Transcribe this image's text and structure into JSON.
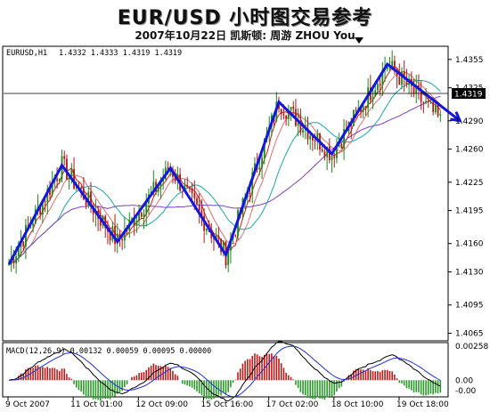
{
  "header": {
    "title": "EUR/USD 小时图交易参考",
    "subtitle": "2007年10月22日  凯斯顿: 周游 ZHOU You"
  },
  "chart_data": {
    "type": "candlestick",
    "symbol_label": "EURUSD,H1",
    "ohlc_label": "1.4332 1.4333 1.4319 1.4319",
    "price_axis": {
      "ticks": [
        "1.4355",
        "1.4325",
        "1.4290",
        "1.4260",
        "1.4225",
        "1.4195",
        "1.4160",
        "1.4130",
        "1.4095",
        "1.4065"
      ],
      "range": [
        1.4058,
        1.4368
      ]
    },
    "current_price": "1.4319",
    "time_axis": {
      "ticks": [
        "9 Oct 2007",
        "11 Oct 01:00",
        "12 Oct 09:00",
        "15 Oct 16:00",
        "17 Oct 02:00",
        "18 Oct 10:00",
        "19 Oct 18:00"
      ]
    },
    "zigzag_pattern": [
      1.4138,
      1.4243,
      1.4162,
      1.424,
      1.4148,
      1.431,
      1.4255,
      1.435,
      1.429
    ],
    "macd": {
      "label": "MACD(12,26,9) 0.00132 0.00059 0.00095 0.00000",
      "axis_ticks": [
        "0.00258",
        "0.00",
        "-0.00"
      ],
      "range": [
        -0.0012,
        0.0028
      ]
    },
    "colors": {
      "zigzag": "#1515e0",
      "up_candle": "#1a8a1a",
      "down_candle": "#b01818",
      "ma_fast": "#e01818",
      "ma_mid": "#e07070",
      "ma_slow": "#1aa8a8",
      "ma_long": "#8040c0",
      "macd_pos": "#c01818",
      "macd_neg": "#2a9a2a"
    }
  }
}
